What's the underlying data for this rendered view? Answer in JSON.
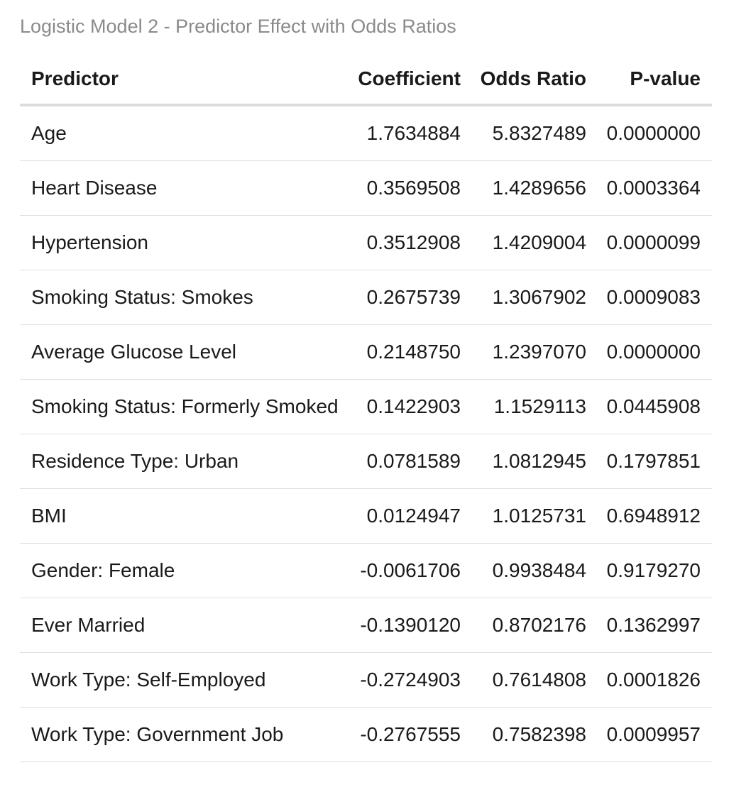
{
  "caption": "Logistic Model 2 - Predictor Effect with Odds Ratios",
  "chart_data": {
    "type": "table",
    "title": "Logistic Model 2 - Predictor Effect with Odds Ratios",
    "columns": [
      "Predictor",
      "Coefficient",
      "Odds Ratio",
      "P-value"
    ],
    "rows": [
      [
        "Age",
        "1.7634884",
        "5.8327489",
        "0.0000000"
      ],
      [
        "Heart Disease",
        "0.3569508",
        "1.4289656",
        "0.0003364"
      ],
      [
        "Hypertension",
        "0.3512908",
        "1.4209004",
        "0.0000099"
      ],
      [
        "Smoking Status: Smokes",
        "0.2675739",
        "1.3067902",
        "0.0009083"
      ],
      [
        "Average Glucose Level",
        "0.2148750",
        "1.2397070",
        "0.0000000"
      ],
      [
        "Smoking Status: Formerly Smoked",
        "0.1422903",
        "1.1529113",
        "0.0445908"
      ],
      [
        "Residence Type: Urban",
        "0.0781589",
        "1.0812945",
        "0.1797851"
      ],
      [
        "BMI",
        "0.0124947",
        "1.0125731",
        "0.6948912"
      ],
      [
        "Gender: Female",
        "-0.0061706",
        "0.9938484",
        "0.9179270"
      ],
      [
        "Ever Married",
        "-0.1390120",
        "0.8702176",
        "0.1362997"
      ],
      [
        "Work Type: Self-Employed",
        "-0.2724903",
        "0.7614808",
        "0.0001826"
      ],
      [
        "Work Type: Government Job",
        "-0.2767555",
        "0.7582398",
        "0.0009957"
      ]
    ]
  }
}
